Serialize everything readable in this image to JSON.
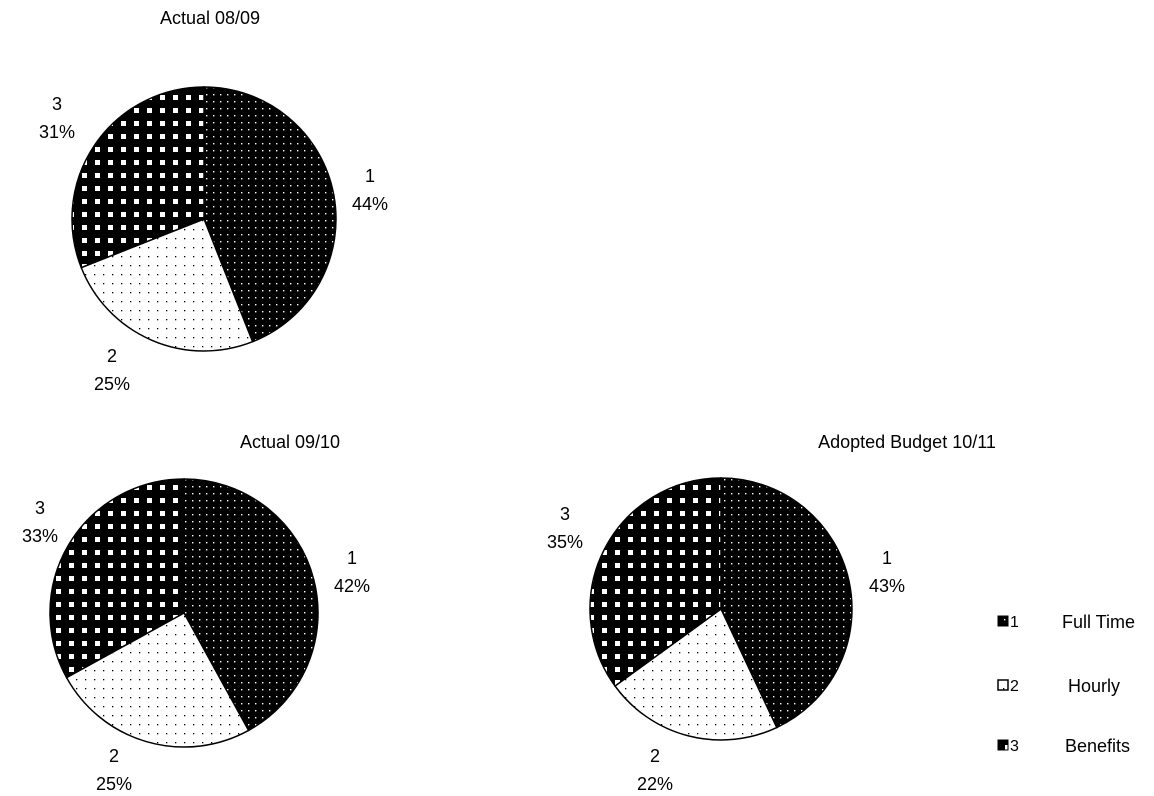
{
  "chart_data": [
    {
      "type": "pie",
      "title": "Actual 08/09",
      "slices": [
        {
          "key": "1",
          "percent": 44,
          "pct_label": "44%"
        },
        {
          "key": "2",
          "percent": 25,
          "pct_label": "25%"
        },
        {
          "key": "3",
          "percent": 31,
          "pct_label": "31%"
        }
      ]
    },
    {
      "type": "pie",
      "title": "Actual 09/10",
      "slices": [
        {
          "key": "1",
          "percent": 42,
          "pct_label": "42%"
        },
        {
          "key": "2",
          "percent": 25,
          "pct_label": "25%"
        },
        {
          "key": "3",
          "percent": 33,
          "pct_label": "33%"
        }
      ]
    },
    {
      "type": "pie",
      "title": "Adopted Budget 10/11",
      "slices": [
        {
          "key": "1",
          "percent": 43,
          "pct_label": "43%"
        },
        {
          "key": "2",
          "percent": 22,
          "pct_label": "22%"
        },
        {
          "key": "3",
          "percent": 35,
          "pct_label": "35%"
        }
      ]
    }
  ],
  "legend": {
    "placement": "bottom-right",
    "entries": [
      {
        "key": "1",
        "label": "Full Time"
      },
      {
        "key": "2",
        "label": "Hourly"
      },
      {
        "key": "3",
        "label": "Benefits"
      }
    ]
  }
}
